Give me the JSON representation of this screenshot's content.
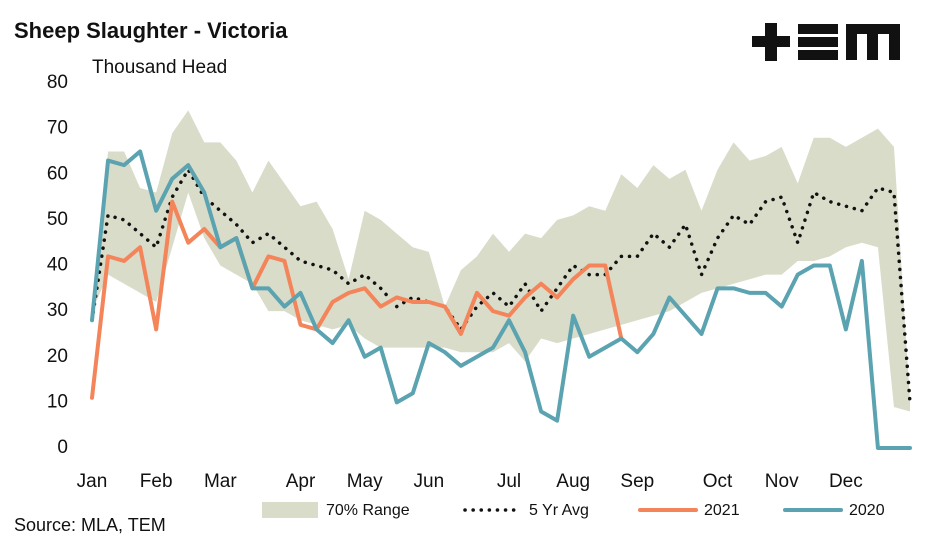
{
  "chart_data": {
    "type": "line",
    "title": "Sheep Slaughter - Victoria",
    "y_label": "Thousand Head",
    "source": "Source: MLA, TEM",
    "categories": [
      "Jan",
      null,
      null,
      null,
      "Feb",
      null,
      null,
      null,
      "Mar",
      null,
      null,
      null,
      null,
      "Apr",
      null,
      null,
      null,
      "May",
      null,
      null,
      null,
      "Jun",
      null,
      null,
      null,
      null,
      "Jul",
      null,
      null,
      null,
      "Aug",
      null,
      null,
      null,
      "Sep",
      null,
      null,
      null,
      null,
      "Oct",
      null,
      null,
      null,
      "Nov",
      null,
      null,
      null,
      "Dec",
      null,
      null,
      null,
      null
    ],
    "ylim": [
      0,
      80
    ],
    "yticks": [
      0,
      10,
      20,
      30,
      40,
      50,
      60,
      70,
      80
    ],
    "grid": false,
    "legend": "bottom",
    "series": [
      {
        "name": "70% Range",
        "color": "#d9dcc9",
        "style": "band",
        "low": [
          30,
          38,
          36,
          34,
          32,
          44,
          56,
          46,
          40,
          38,
          36,
          30,
          30,
          28,
          27,
          26,
          27,
          24,
          22,
          22,
          22,
          22,
          22,
          21,
          21,
          21,
          23,
          19,
          24,
          23,
          24,
          25,
          26,
          27,
          28,
          29,
          30,
          32,
          34,
          35,
          36,
          37,
          38,
          38,
          41,
          41,
          42,
          44,
          45,
          44,
          9,
          8
        ],
        "high": [
          30,
          65,
          65,
          57,
          56,
          69,
          74,
          67,
          67,
          63,
          56,
          63,
          58,
          53,
          54,
          48,
          37,
          52,
          50,
          47,
          44,
          43,
          31,
          39,
          42,
          47,
          43,
          47,
          46,
          50,
          51,
          53,
          52,
          60,
          57,
          62,
          59,
          61,
          52,
          61,
          67,
          63,
          64,
          66,
          58,
          68,
          68,
          66,
          68,
          70,
          66,
          10
        ]
      },
      {
        "name": "5 Yr Avg",
        "color": "#111111",
        "style": "dotted",
        "values": [
          28,
          51,
          50,
          47,
          44,
          55,
          61,
          55,
          52,
          49,
          45,
          47,
          44,
          41,
          40,
          39,
          36,
          38,
          35,
          31,
          33,
          32,
          31,
          26,
          31,
          34,
          31,
          36,
          30,
          35,
          40,
          38,
          38,
          42,
          42,
          47,
          44,
          49,
          38,
          46,
          51,
          49,
          54,
          55,
          45,
          56,
          54,
          53,
          52,
          57,
          56,
          10
        ]
      },
      {
        "name": "2021",
        "color": "#f4845a",
        "style": "solid",
        "values": [
          11,
          42,
          41,
          44,
          26,
          54,
          45,
          48,
          44,
          46,
          35,
          42,
          41,
          27,
          26,
          32,
          34,
          35,
          31,
          33,
          32,
          32,
          31,
          25,
          34,
          30,
          29,
          33,
          36,
          33,
          37,
          40,
          40,
          24,
          null,
          null,
          null,
          null,
          null,
          null,
          null,
          null,
          null,
          null,
          null,
          null,
          null,
          null,
          null,
          null,
          null,
          null
        ]
      },
      {
        "name": "2020",
        "color": "#5ba3b0",
        "style": "solid",
        "values": [
          28,
          63,
          62,
          65,
          52,
          59,
          62,
          56,
          44,
          46,
          35,
          35,
          31,
          34,
          26,
          23,
          28,
          20,
          22,
          10,
          12,
          23,
          21,
          18,
          20,
          22,
          28,
          21,
          8,
          6,
          29,
          20,
          22,
          24,
          21,
          25,
          33,
          29,
          25,
          35,
          35,
          34,
          34,
          31,
          38,
          40,
          40,
          26,
          41,
          0,
          0,
          0
        ]
      }
    ]
  }
}
